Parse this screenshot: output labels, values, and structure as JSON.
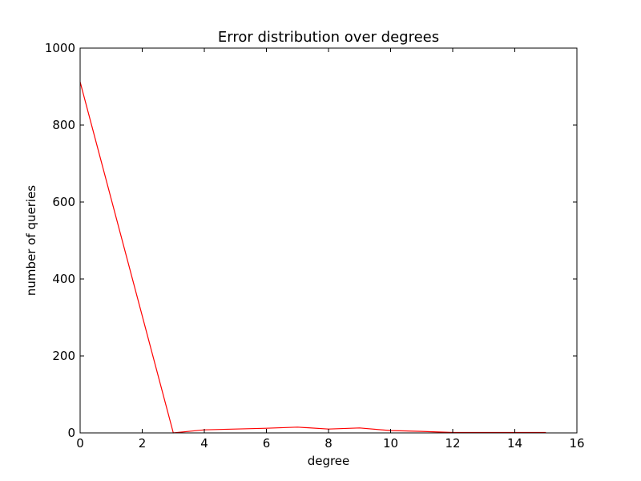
{
  "chart_data": {
    "type": "line",
    "title": "Error distribution over degrees",
    "xlabel": "degree",
    "ylabel": "number of queries",
    "xlim": [
      0,
      16
    ],
    "ylim": [
      0,
      1000
    ],
    "xticks": [
      "0",
      "2",
      "4",
      "6",
      "8",
      "10",
      "12",
      "14",
      "16"
    ],
    "yticks": [
      "0",
      "200",
      "400",
      "600",
      "800",
      "1000"
    ],
    "grid": false,
    "series": [
      {
        "color": "#ff0000",
        "x": [
          0,
          3,
          4,
          5,
          6,
          7,
          8,
          9,
          10,
          11,
          12,
          13,
          14,
          15
        ],
        "y": [
          912,
          0,
          8,
          10,
          12,
          15,
          10,
          13,
          6,
          4,
          1,
          1,
          1,
          1
        ]
      }
    ]
  }
}
